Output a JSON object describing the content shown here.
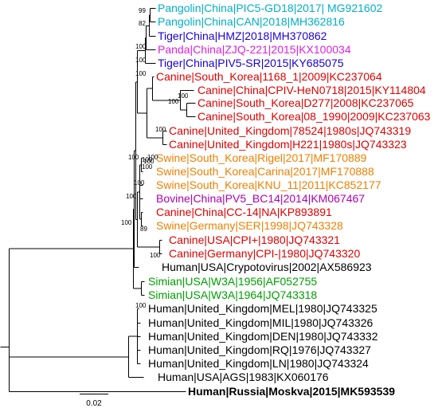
{
  "colors": {
    "cyan": "#00b0c8",
    "blue": "#1a00d6",
    "magenta": "#e020e0",
    "red": "#e00000",
    "orange": "#f08000",
    "purple": "#b000b0",
    "black": "#000000",
    "green": "#00a000"
  },
  "leaves": [
    {
      "label": "Pangolin|China|PIC5-GD18|2017| MG921602",
      "color": "cyan"
    },
    {
      "label": "Pangolin|China|CAN|2018|MH362816",
      "color": "cyan"
    },
    {
      "label": "Tiger|China|HMZ|2018|MH370862",
      "color": "blue"
    },
    {
      "label": "Panda|China|ZJQ-221|2015|KX100034",
      "color": "magenta"
    },
    {
      "label": "Tiger|China|PIV5-SR|2015|KY685075",
      "color": "blue"
    },
    {
      "label": "Canine|South_Korea|1168_1|2009|KC237064",
      "color": "red"
    },
    {
      "label": "Canine|China|CPIV-HeN0718|2015|KY114804",
      "color": "red"
    },
    {
      "label": "Canine|South_Korea|D277|2008|KC237065",
      "color": "red"
    },
    {
      "label": "Canine|South_Korea|08_1990|2009|KC237063",
      "color": "red"
    },
    {
      "label": "Canine|United_Kingdom|78524|1980s|JQ743319",
      "color": "red"
    },
    {
      "label": "Canine|United_Kingdom|H221|1980s|JQ743323",
      "color": "red"
    },
    {
      "label": "Swine|South_Korea|Rigel|2017|MF170889",
      "color": "orange"
    },
    {
      "label": "Swine|South_Korea|Carina|2017|MF170888",
      "color": "orange"
    },
    {
      "label": "Swine|South_Korea|KNU_11|2011|KC852177",
      "color": "orange"
    },
    {
      "label": "Bovine|China|PV5_BC14|2014|KM067467",
      "color": "purple"
    },
    {
      "label": "Canine|China|CC-14|NA|KP893891",
      "color": "red"
    },
    {
      "label": "Swine|Germany|SER|1998|JQ743328",
      "color": "orange"
    },
    {
      "label": "Canine|USA|CPI+|1980|JQ743321",
      "color": "red"
    },
    {
      "label": "Canine|Germany|CPI-|1980|JQ743320",
      "color": "red"
    },
    {
      "label": "Human|USA|Crypotovirus|2002|AX586923",
      "color": "black"
    },
    {
      "label": "Simian|USA|W3A|1956|AF052755",
      "color": "green"
    },
    {
      "label": "Simian|USA|W3A|1964|JQ743318",
      "color": "green"
    },
    {
      "label": "Human|United_Kingdom|MEL|1980|JQ743325",
      "color": "black"
    },
    {
      "label": "Human|United_Kingdom|MIL|1980|JQ743326",
      "color": "black"
    },
    {
      "label": "Human|United_Kingdom|DEN|1980|JQ743332",
      "color": "black"
    },
    {
      "label": "Human|United_Kingdom|RQ|1976|JQ743327",
      "color": "black"
    },
    {
      "label": "Human|United_Kingdom|LN|1980|JQ743324",
      "color": "black"
    },
    {
      "label": "Human|USA|AGS|1983|KX060176",
      "color": "black"
    },
    {
      "label": "Human|Russia|Moskva|2015|MK593539",
      "color": "black",
      "bold": true
    }
  ],
  "bootstrap": [
    "99",
    "82",
    "100",
    "100",
    "100",
    "100",
    "100",
    "100",
    "100",
    "100",
    "100",
    "100",
    "100",
    "89",
    "100",
    "100",
    "100",
    "100",
    "100"
  ],
  "scale_bar": {
    "label": "0.02"
  }
}
